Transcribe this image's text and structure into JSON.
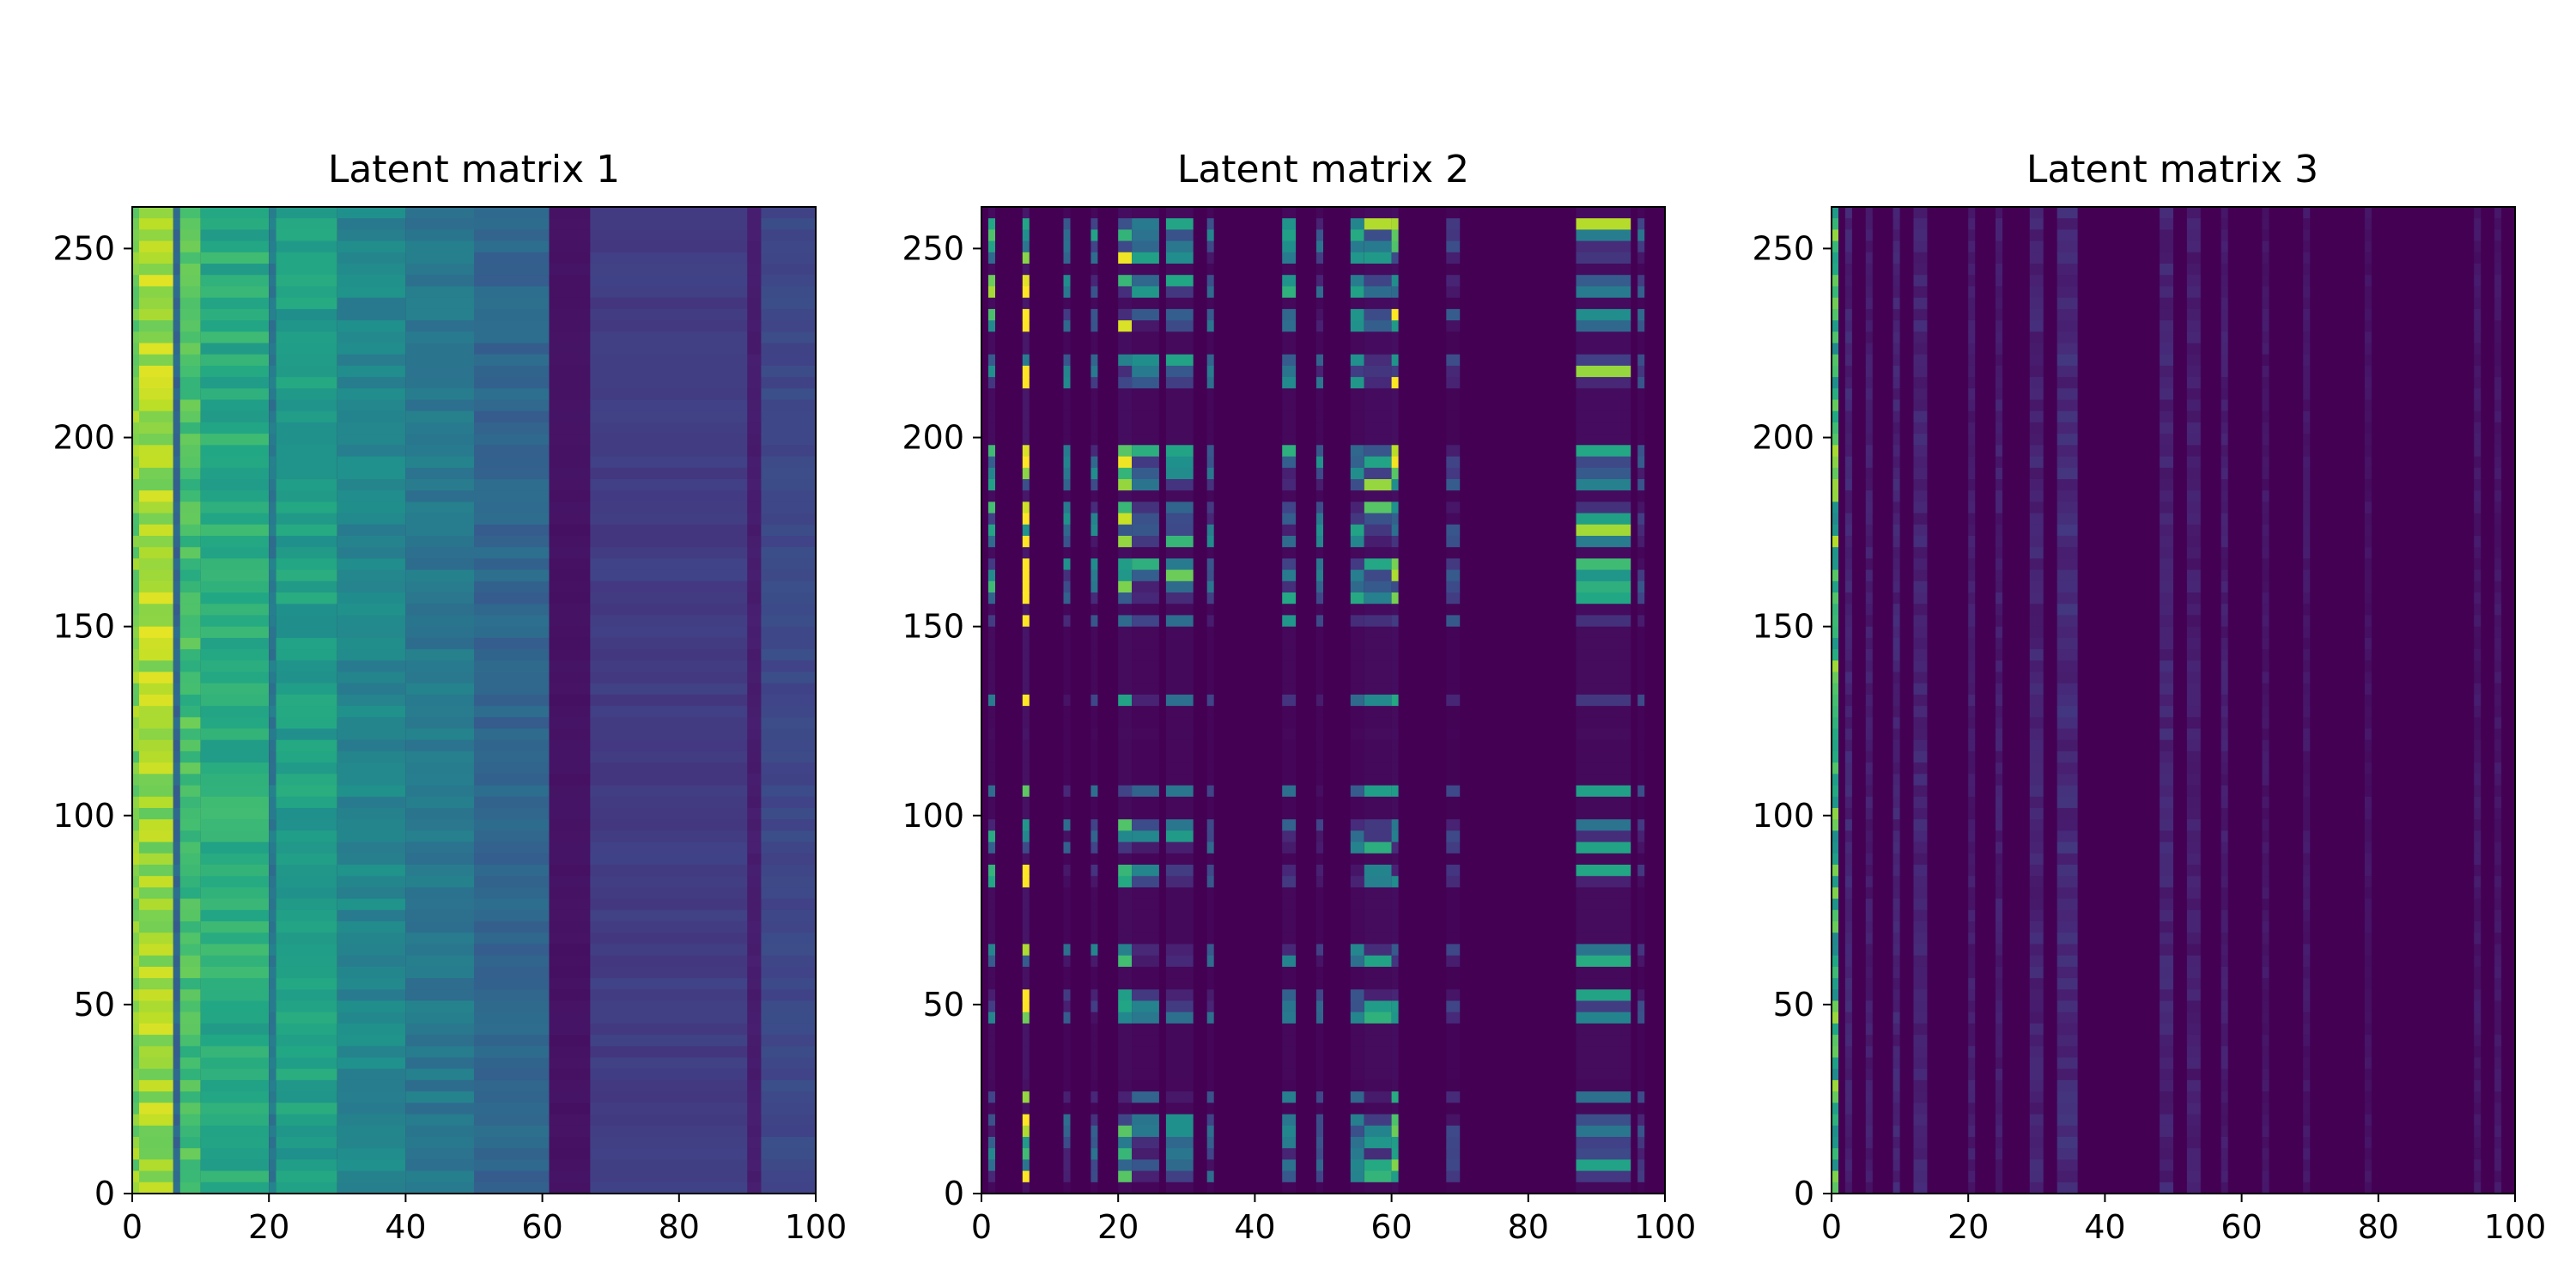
{
  "chart_data": [
    {
      "type": "heatmap",
      "title": "Latent matrix 1",
      "xlabel": "",
      "ylabel": "",
      "xlim": [
        0,
        100
      ],
      "ylim": [
        0,
        261
      ],
      "xticks": [
        0,
        20,
        40,
        60,
        80,
        100
      ],
      "yticks": [
        0,
        50,
        100,
        150,
        200,
        250
      ],
      "grid": false,
      "colormap": "viridis",
      "value_range": [
        0,
        1
      ],
      "pattern": "columns-bright-left-fading",
      "column_profile": [
        {
          "x": [
            0,
            1
          ],
          "value": 0.8
        },
        {
          "x": [
            1,
            6
          ],
          "value": 0.86
        },
        {
          "x": [
            6,
            7
          ],
          "value": 0.33
        },
        {
          "x": [
            7,
            10
          ],
          "value": 0.7
        },
        {
          "x": [
            10,
            20
          ],
          "value": 0.62
        },
        {
          "x": [
            20,
            21
          ],
          "value": 0.4
        },
        {
          "x": [
            21,
            30
          ],
          "value": 0.56
        },
        {
          "x": [
            30,
            40
          ],
          "value": 0.46
        },
        {
          "x": [
            40,
            50
          ],
          "value": 0.4
        },
        {
          "x": [
            50,
            61
          ],
          "value": 0.33
        },
        {
          "x": [
            61,
            67
          ],
          "value": 0.05
        },
        {
          "x": [
            67,
            90
          ],
          "value": 0.18
        },
        {
          "x": [
            90,
            92
          ],
          "value": 0.08
        },
        {
          "x": [
            92,
            100
          ],
          "value": 0.22
        }
      ]
    },
    {
      "type": "heatmap",
      "title": "Latent matrix 2",
      "xlabel": "",
      "ylabel": "",
      "xlim": [
        0,
        100
      ],
      "ylim": [
        0,
        261
      ],
      "xticks": [
        0,
        20,
        40,
        60,
        80,
        100
      ],
      "yticks": [
        0,
        50,
        100,
        150,
        200,
        250
      ],
      "grid": false,
      "colormap": "viridis",
      "value_range": [
        0,
        1
      ],
      "pattern": "sparse-columns-and-rows",
      "active_columns": [
        {
          "x": [
            1,
            2
          ],
          "value": 0.35
        },
        {
          "x": [
            6,
            7
          ],
          "value": 0.75
        },
        {
          "x": [
            12,
            13
          ],
          "value": 0.2
        },
        {
          "x": [
            16,
            17
          ],
          "value": 0.25
        },
        {
          "x": [
            20,
            22
          ],
          "value": 0.4
        },
        {
          "x": [
            22,
            26
          ],
          "value": 0.25
        },
        {
          "x": [
            27,
            31
          ],
          "value": 0.3
        },
        {
          "x": [
            33,
            34
          ],
          "value": 0.2
        },
        {
          "x": [
            44,
            46
          ],
          "value": 0.25
        },
        {
          "x": [
            49,
            50
          ],
          "value": 0.2
        },
        {
          "x": [
            54,
            56
          ],
          "value": 0.25
        },
        {
          "x": [
            56,
            60
          ],
          "value": 0.35
        },
        {
          "x": [
            60,
            61
          ],
          "value": 0.45
        },
        {
          "x": [
            68,
            70
          ],
          "value": 0.12
        },
        {
          "x": [
            87,
            95
          ],
          "value": 0.35
        },
        {
          "x": [
            96,
            97
          ],
          "value": 0.15
        }
      ],
      "quiet_rows": [
        [
          112,
          128
        ],
        [
          138,
          142
        ],
        [
          180,
          194
        ],
        [
          215,
          232
        ],
        [
          262,
          262
        ]
      ]
    },
    {
      "type": "heatmap",
      "title": "Latent matrix 3",
      "xlabel": "",
      "ylabel": "",
      "xlim": [
        0,
        100
      ],
      "ylim": [
        0,
        261
      ],
      "xticks": [
        0,
        20,
        40,
        60,
        80,
        100
      ],
      "yticks": [
        0,
        50,
        100,
        150,
        200,
        250
      ],
      "grid": false,
      "colormap": "viridis",
      "value_range": [
        0,
        1
      ],
      "pattern": "single-bright-column",
      "active_columns": [
        {
          "x": [
            0,
            1
          ],
          "value": 0.85
        },
        {
          "x": [
            2,
            3
          ],
          "value": 0.1
        },
        {
          "x": [
            5,
            6
          ],
          "value": 0.08
        },
        {
          "x": [
            9,
            10
          ],
          "value": 0.1
        },
        {
          "x": [
            12,
            14
          ],
          "value": 0.1
        },
        {
          "x": [
            20,
            21
          ],
          "value": 0.08
        },
        {
          "x": [
            24,
            25
          ],
          "value": 0.08
        },
        {
          "x": [
            29,
            31
          ],
          "value": 0.1
        },
        {
          "x": [
            33,
            36
          ],
          "value": 0.12
        },
        {
          "x": [
            48,
            50
          ],
          "value": 0.1
        },
        {
          "x": [
            52,
            54
          ],
          "value": 0.08
        },
        {
          "x": [
            57,
            58
          ],
          "value": 0.08
        },
        {
          "x": [
            63,
            64
          ],
          "value": 0.06
        },
        {
          "x": [
            69,
            70
          ],
          "value": 0.06
        },
        {
          "x": [
            78,
            79
          ],
          "value": 0.05
        },
        {
          "x": [
            94,
            95
          ],
          "value": 0.06
        },
        {
          "x": [
            97,
            98
          ],
          "value": 0.06
        }
      ]
    }
  ]
}
